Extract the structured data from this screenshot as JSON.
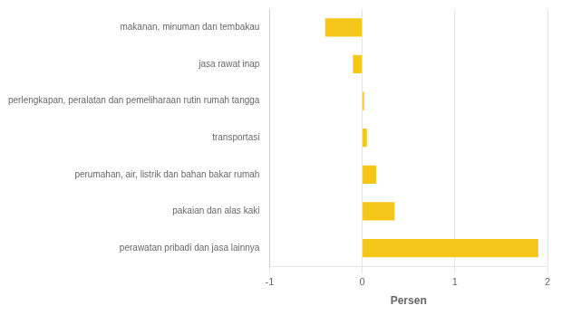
{
  "chart_data": {
    "type": "bar",
    "orientation": "horizontal",
    "categories": [
      "makanan, minuman dan tembakau",
      "jasa rawat inap",
      "perlengkapan, peralatan dan pemeliharaan rutin rumah tangga",
      "transportasi",
      "perumahan, air, listrik dan bahan bakar rumah",
      "pakaian dan alas kaki",
      "perawatan pribadi dan jasa lainnya"
    ],
    "values": [
      -0.4,
      -0.1,
      0.02,
      0.05,
      0.15,
      0.35,
      1.9
    ],
    "color": "#F5C518",
    "xlabel": "Persen",
    "xlim": [
      -1,
      2
    ],
    "xticks": [
      -1,
      0,
      1,
      2
    ],
    "grid": true
  }
}
